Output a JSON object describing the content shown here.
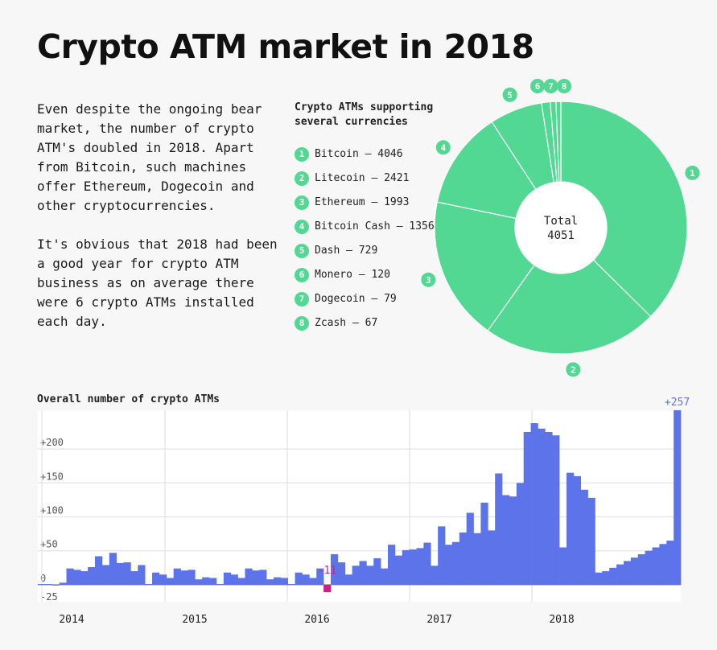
{
  "title": "Crypto ATM market in 2018",
  "intro": {
    "p1": "Even despite the ongoing bear market, the number of crypto ATM's doubled in 2018. Apart from Bitcoin, such machines offer Ethereum, Dogecoin and other cryptocurrencies.",
    "p2": "It's obvious that 2018 had been a good year for crypto ATM business as on average there were 6 crypto ATMs installed each day."
  },
  "colors": {
    "green": "#52d893",
    "blue": "#5c73ea",
    "negative": "#d11c8c",
    "grid": "#dddddd"
  },
  "chart_data": [
    {
      "type": "pie",
      "title": "Crypto ATMs supporting several currencies",
      "center_label": "Total",
      "center_value": "4051",
      "slices": [
        {
          "marker": "1",
          "label": "Bitcoin – 4046",
          "value": 4046
        },
        {
          "marker": "2",
          "label": "Litecoin – 2421",
          "value": 2421
        },
        {
          "marker": "3",
          "label": "Ethereum – 1993",
          "value": 1993
        },
        {
          "marker": "4",
          "label": "Bitcoin Cash – 1356",
          "value": 1356
        },
        {
          "marker": "5",
          "label": "Dash – 729",
          "value": 729
        },
        {
          "marker": "6",
          "label": "Monero – 120",
          "value": 120
        },
        {
          "marker": "7",
          "label": "Dogecoin – 79",
          "value": 79
        },
        {
          "marker": "8",
          "label": "Zcash – 67",
          "value": 67
        }
      ]
    },
    {
      "type": "bar",
      "title": "Overall number of crypto ATMs",
      "x_labels": [
        "2014",
        "2015",
        "2016",
        "2017",
        "2018"
      ],
      "y_ticks": [
        {
          "value": 200,
          "label": "+200"
        },
        {
          "value": 150,
          "label": "+150"
        },
        {
          "value": 100,
          "label": "+100"
        },
        {
          "value": 50,
          "label": "+50"
        },
        {
          "value": 0,
          "label": "0"
        },
        {
          "value": -25,
          "label": "-25"
        }
      ],
      "ylim": [
        -25,
        257
      ],
      "annotations": [
        {
          "index": 40,
          "text": "-11"
        },
        {
          "index": 89,
          "text": "+257"
        }
      ],
      "values": [
        1,
        1,
        0,
        3,
        24,
        22,
        20,
        26,
        42,
        29,
        47,
        32,
        33,
        20,
        29,
        1,
        18,
        15,
        10,
        24,
        21,
        22,
        8,
        11,
        10,
        1,
        18,
        15,
        10,
        24,
        21,
        22,
        8,
        11,
        10,
        1,
        18,
        15,
        10,
        24,
        -11,
        45,
        33,
        15,
        28,
        35,
        28,
        39,
        24,
        59,
        43,
        51,
        52,
        54,
        62,
        28,
        86,
        59,
        63,
        77,
        106,
        76,
        121,
        80,
        164,
        132,
        130,
        150,
        225,
        238,
        230,
        225,
        220,
        55,
        165,
        160,
        140,
        128,
        18,
        20,
        25,
        30,
        35,
        40,
        45,
        50,
        55,
        60,
        65,
        257
      ],
      "grid": true
    }
  ]
}
